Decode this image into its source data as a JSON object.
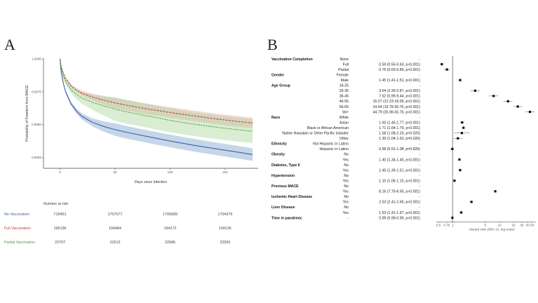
{
  "panels": {
    "a_letter": "A",
    "b_letter": "B"
  },
  "chart_data": [
    {
      "type": "line",
      "panel": "A",
      "xlabel": "Days since Infection",
      "ylabel": "Probability of Freedom from MACE",
      "xlim": [
        -15,
        180
      ],
      "ylim": [
        0.99167,
        1.00005
      ],
      "x_ticks": [
        0,
        50,
        100,
        150
      ],
      "x_tick_labels": [
        "0",
        "50",
        "100",
        "150"
      ],
      "y_ticks": [
        1.0,
        0.9975,
        0.995,
        0.9925
      ],
      "y_tick_labels": [
        "1.0000",
        "0.9975",
        "0.9950",
        "0.9925"
      ],
      "grid": false,
      "series": [
        {
          "key": "no_vacc",
          "color": "#3f5fa8",
          "band": "#7fa3cc",
          "dash": "",
          "x": [
            0,
            1,
            3,
            5,
            10,
            15,
            20,
            30,
            40,
            50,
            60,
            80,
            100,
            120,
            140,
            160,
            175
          ],
          "y": [
            1.0,
            0.99903,
            0.99815,
            0.99752,
            0.99658,
            0.99602,
            0.99562,
            0.99515,
            0.99485,
            0.99462,
            0.99442,
            0.99408,
            0.99375,
            0.99345,
            0.99318,
            0.99292,
            0.99272
          ]
        },
        {
          "key": "full_vacc",
          "color": "#c43c3c",
          "band": "#e5a1a1",
          "dash": "3,1.5",
          "x": [
            0,
            1,
            3,
            5,
            10,
            15,
            20,
            30,
            40,
            50,
            60,
            80,
            100,
            120,
            140,
            160,
            175
          ],
          "y": [
            1.0,
            0.99945,
            0.99892,
            0.99852,
            0.99795,
            0.99762,
            0.99738,
            0.99708,
            0.99685,
            0.99665,
            0.99648,
            0.99618,
            0.99592,
            0.99568,
            0.99545,
            0.99525,
            0.99512
          ]
        },
        {
          "key": "partial_vacc",
          "color": "#4a9a3a",
          "band": "#a9d89a",
          "dash": "2,1.5",
          "x": [
            0,
            1,
            3,
            5,
            10,
            15,
            20,
            30,
            40,
            50,
            60,
            80,
            100,
            120,
            140,
            160,
            175
          ],
          "y": [
            1.0,
            0.99935,
            0.99872,
            0.99828,
            0.99765,
            0.99728,
            0.99702,
            0.99668,
            0.99642,
            0.99618,
            0.99598,
            0.99565,
            0.99532,
            0.99505,
            0.99482,
            0.99462,
            0.9945
          ]
        }
      ],
      "risk_table": {
        "title": "Number at risk",
        "rows": [
          {
            "label": "No Vaccination",
            "values": [
              "716451",
              "1707577",
              "1705689",
              "1704379"
            ]
          },
          {
            "label": "Full Vaccination",
            "values": [
              "195136",
              "194484",
              "194272",
              "194136"
            ]
          },
          {
            "label": "Partial Vaccination",
            "values": [
              "22707",
              "22613",
              "22586",
              "22555"
            ]
          }
        ]
      }
    },
    {
      "type": "scatter",
      "panel": "B",
      "xlabel": "Hazard ratio (95% CI, log scale)",
      "x_scale": "log",
      "xlim": [
        0.45,
        60
      ],
      "x_ticks": [
        0.5,
        0.75,
        1,
        5,
        10,
        20,
        30,
        40,
        50
      ],
      "x_tick_labels": [
        "0.5",
        "0.75",
        "1",
        "5",
        "10",
        "20",
        "30",
        "40",
        "50"
      ],
      "reference_line": 1,
      "rows": [
        {
          "group": "Vaccination Completion",
          "level": "None",
          "text": "-"
        },
        {
          "level": "Full",
          "text": "0.59 (0.55-0.63, p<0.001)",
          "hr": 0.59,
          "lo": 0.55,
          "hi": 0.63
        },
        {
          "level": "Partial",
          "text": "0.76 (0.65-0.89, p<0.001)",
          "hr": 0.76,
          "lo": 0.65,
          "hi": 0.89
        },
        {
          "group": "Gender",
          "level": "Female",
          "text": "-"
        },
        {
          "level": "Male",
          "text": "1.45 (1.41-1.51, p<0.001)",
          "hr": 1.45,
          "lo": 1.41,
          "hi": 1.51
        },
        {
          "group": "Age Group",
          "level": "18-25",
          "text": "-"
        },
        {
          "level": "26-35",
          "text": "3.04 (2.39-3.87, p<0.001)",
          "hr": 3.04,
          "lo": 2.39,
          "hi": 3.87
        },
        {
          "level": "36-45",
          "text": "7.52 (5.99-9.44, p<0.001)",
          "hr": 7.52,
          "lo": 5.99,
          "hi": 9.44
        },
        {
          "level": "46-55",
          "text": "15.27 (12.23-19.05, p<0.001)",
          "hr": 15.27,
          "lo": 12.23,
          "hi": 19.05
        },
        {
          "level": "56-65",
          "text": "24.64 (19.78-30.70, p<0.001)",
          "hr": 24.64,
          "lo": 19.78,
          "hi": 30.7
        },
        {
          "level": "66+",
          "text": "44.79 (35.98-55.76, p<0.001)",
          "hr": 44.79,
          "lo": 35.98,
          "hi": 55.76
        },
        {
          "group": "Race",
          "level": "White",
          "text": "-"
        },
        {
          "level": "Asian",
          "text": "1.60 (1.45-1.77, p<0.001)",
          "hr": 1.6,
          "lo": 1.45,
          "hi": 1.77
        },
        {
          "level": "Black or African American",
          "text": "1.71 (1.64-1.79, p<0.001)",
          "hr": 1.71,
          "lo": 1.64,
          "hi": 1.79
        },
        {
          "level": "Native Hawaiian or Other Pacific Islander",
          "text": "1.58 (1.08-2.33, p=0.020)",
          "hr": 1.58,
          "lo": 1.08,
          "hi": 2.33
        },
        {
          "level": "Other",
          "text": "1.30 (1.04-1.63, p=0.020)",
          "hr": 1.3,
          "lo": 1.04,
          "hi": 1.63
        },
        {
          "group": "Ethnicity",
          "level": "Not Hispanic or Latino",
          "text": "-"
        },
        {
          "level": "Hispanic or Latino",
          "text": "0.99 (0.91-1.08, p=0.826)",
          "hr": 0.99,
          "lo": 0.91,
          "hi": 1.08
        },
        {
          "group": "Obesity",
          "level": "No",
          "text": "-"
        },
        {
          "level": "Yes",
          "text": "1.40 (1.34-1.45, p<0.001)",
          "hr": 1.4,
          "lo": 1.34,
          "hi": 1.45
        },
        {
          "group": "Diabetes, Type II",
          "level": "No",
          "text": "-"
        },
        {
          "level": "Yes",
          "text": "1.45 (1.39-1.51, p<0.001)",
          "hr": 1.45,
          "lo": 1.39,
          "hi": 1.51
        },
        {
          "group": "Hypertension",
          "level": "No",
          "text": "-"
        },
        {
          "level": "Yes",
          "text": "1.10 (1.06-1.15, p<0.001)",
          "hr": 1.1,
          "lo": 1.06,
          "hi": 1.15
        },
        {
          "group": "Previous MACE",
          "level": "No",
          "text": "-"
        },
        {
          "level": "Yes",
          "text": "8.16 (7.79-8.55, p<0.001)",
          "hr": 8.16,
          "lo": 7.79,
          "hi": 8.55
        },
        {
          "group": "Ischemic Heart Disease",
          "level": "No",
          "text": "-"
        },
        {
          "level": "Yes",
          "text": "2.53 (2.41-2.66, p<0.001)",
          "hr": 2.53,
          "lo": 2.41,
          "hi": 2.66
        },
        {
          "group": "Liver Disease",
          "level": "No",
          "text": "-"
        },
        {
          "level": "Yes",
          "text": "1.53 (1.41-1.67, p<0.001)",
          "hr": 1.53,
          "lo": 1.41,
          "hi": 1.67
        },
        {
          "group": "Time in pandemic",
          "level": "-",
          "text": "0.99 (0.99-0.99, p<0.001)",
          "hr": 0.99,
          "lo": 0.99,
          "hi": 0.99
        }
      ]
    }
  ]
}
